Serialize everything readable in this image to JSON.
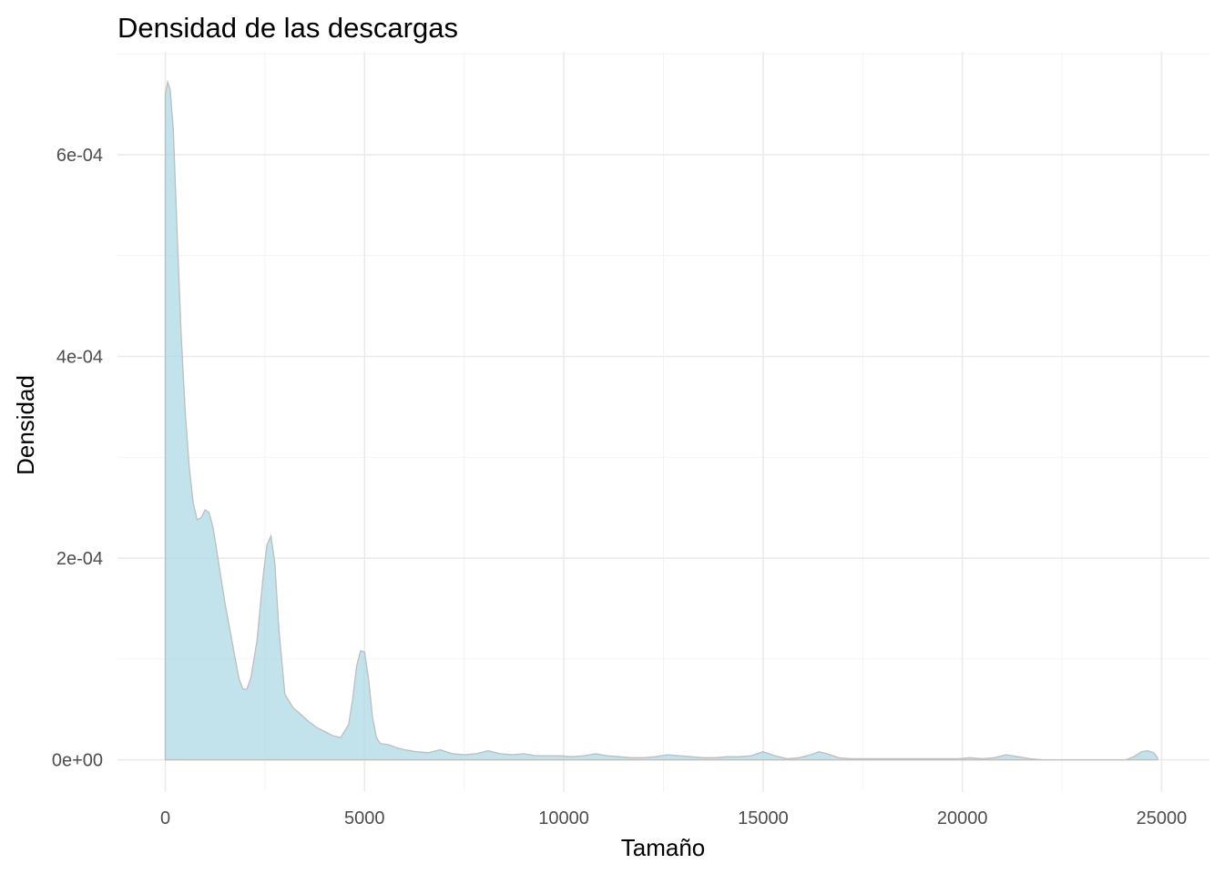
{
  "chart_data": {
    "type": "area",
    "title": "Densidad de las descargas",
    "xlabel": "Tamaño",
    "ylabel": "Densidad",
    "xlim": [
      -1200,
      26200
    ],
    "ylim": [
      -3.2e-05,
      0.000702
    ],
    "x_ticks": [
      0,
      5000,
      10000,
      15000,
      20000,
      25000
    ],
    "x_tick_labels": [
      "0",
      "5000",
      "10000",
      "15000",
      "20000",
      "25000"
    ],
    "y_ticks": [
      0,
      0.0002,
      0.0004,
      0.0006
    ],
    "y_tick_labels": [
      "0e+00",
      "2e-04",
      "4e-04",
      "6e-04"
    ],
    "grid": true,
    "legend": "none",
    "fill_color": "#add8e6",
    "line_color": "#bebebe",
    "series": [
      {
        "x": [
          0,
          60,
          120,
          200,
          300,
          400,
          500,
          600,
          700,
          800,
          900,
          1000,
          1100,
          1200,
          1300,
          1500,
          1700,
          1850,
          1950,
          2050,
          2150,
          2300,
          2450,
          2550,
          2650,
          2750,
          2850,
          3000,
          3200,
          3400,
          3600,
          3800,
          4000,
          4200,
          4400,
          4600,
          4700,
          4800,
          4900,
          5000,
          5100,
          5200,
          5300,
          5400,
          5600,
          5800,
          6000,
          6300,
          6600,
          6900,
          7200,
          7500,
          7800,
          8100,
          8400,
          8700,
          9000,
          9300,
          9600,
          9900,
          10200,
          10500,
          10800,
          11100,
          11400,
          11700,
          12000,
          12300,
          12600,
          12900,
          13200,
          13500,
          13800,
          14100,
          14400,
          14700,
          15000,
          15300,
          15600,
          15900,
          16200,
          16400,
          16600,
          16900,
          17200,
          17500,
          17800,
          18100,
          18400,
          18700,
          19000,
          19300,
          19600,
          19900,
          20200,
          20500,
          20800,
          21100,
          21400,
          21700,
          22000,
          22300,
          22600,
          22900,
          23200,
          23500,
          23800,
          24100,
          24300,
          24500,
          24650,
          24800,
          24900
        ],
        "values": [
          0.00066,
          0.000672,
          0.000665,
          0.000625,
          0.00052,
          0.00042,
          0.000345,
          0.00029,
          0.000255,
          0.000238,
          0.00024,
          0.000248,
          0.000245,
          0.00023,
          0.000205,
          0.000155,
          0.000112,
          8e-05,
          7e-05,
          7e-05,
          8.2e-05,
          0.000118,
          0.00018,
          0.000213,
          0.000222,
          0.000195,
          0.00013,
          6.5e-05,
          5.2e-05,
          4.5e-05,
          3.8e-05,
          3.2e-05,
          2.8e-05,
          2.4e-05,
          2.2e-05,
          3.5e-05,
          6e-05,
          9.3e-05,
          0.000108,
          0.000107,
          8e-05,
          4.2e-05,
          2.2e-05,
          1.6e-05,
          1.5e-05,
          1.2e-05,
          1e-05,
          8e-06,
          7e-06,
          1e-05,
          6e-06,
          5e-06,
          6e-06,
          9e-06,
          6e-06,
          5e-06,
          6e-06,
          4e-06,
          4e-06,
          4e-06,
          3e-06,
          4e-06,
          6e-06,
          4e-06,
          3e-06,
          2e-06,
          2e-06,
          3e-06,
          5e-06,
          4e-06,
          3e-06,
          2e-06,
          2e-06,
          3e-06,
          3e-06,
          4e-06,
          8e-06,
          4e-06,
          1e-06,
          2e-06,
          5e-06,
          8e-06,
          6e-06,
          2e-06,
          1e-06,
          1e-06,
          1e-06,
          1e-06,
          1e-06,
          1e-06,
          1e-06,
          1e-06,
          1e-06,
          1e-06,
          2e-06,
          1e-06,
          2e-06,
          5e-06,
          3e-06,
          1e-06,
          0.0,
          0.0,
          0.0,
          0.0,
          0.0,
          0.0,
          0.0,
          0.0,
          3e-06,
          8e-06,
          9e-06,
          7e-06,
          2e-06
        ]
      }
    ]
  }
}
